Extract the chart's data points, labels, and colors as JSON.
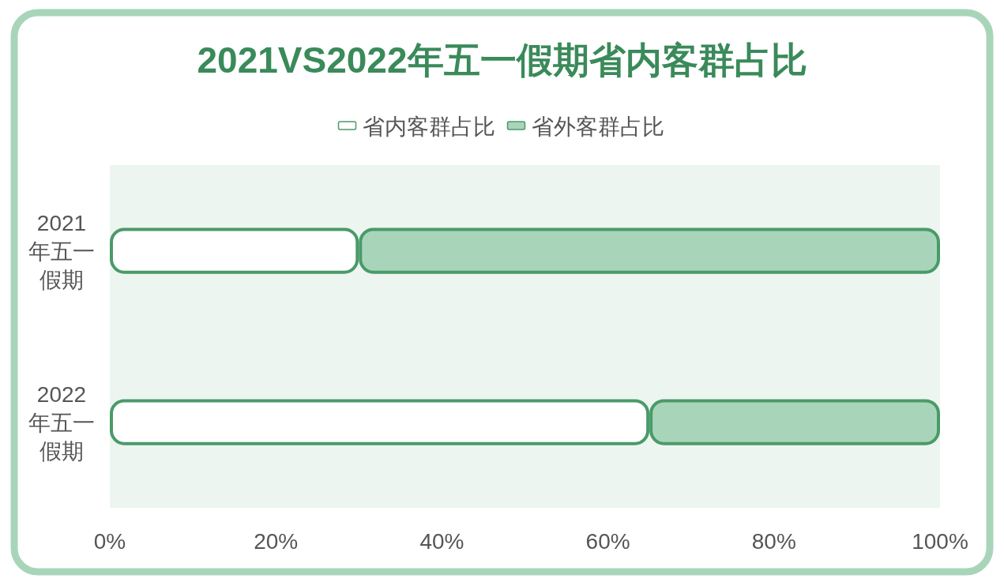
{
  "chart_data": {
    "type": "bar",
    "orientation": "horizontal",
    "stacked": true,
    "title": "2021VS2022年五一假期省内客群占比",
    "categories": [
      "2021年五一假期",
      "2022年五一假期"
    ],
    "series": [
      {
        "name": "省内客群占比",
        "color": "#ffffff",
        "values": [
          30,
          65
        ]
      },
      {
        "name": "省外客群占比",
        "color": "#a8d5b9",
        "values": [
          70,
          35
        ]
      }
    ],
    "xlim": [
      0,
      100
    ],
    "xticks": [
      {
        "value": 0,
        "label": "0%"
      },
      {
        "value": 20,
        "label": "20%"
      },
      {
        "value": 40,
        "label": "40%"
      },
      {
        "value": 60,
        "label": "60%"
      },
      {
        "value": 80,
        "label": "80%"
      },
      {
        "value": 100,
        "label": "100%"
      }
    ],
    "legend": "top"
  }
}
